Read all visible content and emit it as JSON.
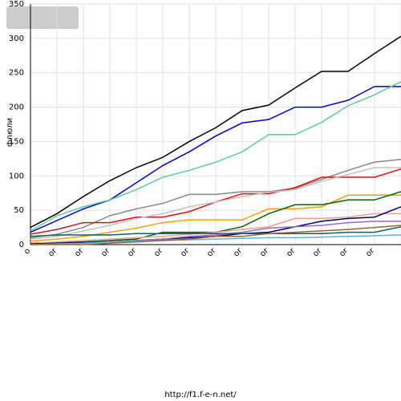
{
  "chart_data": {
    "type": "line",
    "y_label": "флюли",
    "footer": "http://f1.f-e-n.net/",
    "categories": [
      "o",
      "or",
      "or",
      "or",
      "or",
      "or",
      "or",
      "or",
      "or",
      "or",
      "or",
      "or",
      "or",
      "or",
      null
    ],
    "ylim": [
      0,
      350
    ],
    "yticks": [
      0,
      50,
      100,
      150,
      200,
      250,
      300,
      350
    ],
    "grid": true,
    "series": [
      {
        "color": "#000000",
        "values": [
          25,
          45,
          70,
          93,
          112,
          127,
          150,
          170,
          195,
          203,
          228,
          252,
          252,
          278,
          303
        ]
      },
      {
        "color": "#0000cc",
        "values": [
          18,
          35,
          52,
          65,
          90,
          115,
          135,
          158,
          177,
          182,
          200,
          200,
          210,
          230,
          230
        ]
      },
      {
        "color": "#5fc8a8",
        "values": [
          20,
          42,
          55,
          65,
          80,
          98,
          108,
          120,
          135,
          160,
          160,
          178,
          202,
          218,
          237
        ]
      },
      {
        "color": "#888888",
        "values": [
          10,
          15,
          25,
          42,
          52,
          60,
          73,
          73,
          77,
          77,
          82,
          95,
          108,
          120,
          124
        ]
      },
      {
        "color": "#dd1111",
        "values": [
          15,
          22,
          32,
          32,
          40,
          40,
          48,
          62,
          74,
          74,
          83,
          98,
          98,
          98,
          110
        ]
      },
      {
        "color": "#c0c0c0",
        "values": [
          8,
          12,
          20,
          28,
          38,
          45,
          55,
          62,
          70,
          76,
          80,
          92,
          102,
          112,
          112
        ]
      },
      {
        "color": "#f0a000",
        "values": [
          5,
          8,
          12,
          18,
          24,
          32,
          36,
          36,
          36,
          52,
          52,
          55,
          72,
          72,
          72
        ]
      },
      {
        "color": "#006600",
        "values": [
          2,
          3,
          4,
          6,
          8,
          18,
          18,
          18,
          26,
          45,
          58,
          58,
          65,
          65,
          77
        ]
      },
      {
        "color": "#e8a090",
        "values": [
          2,
          4,
          6,
          8,
          10,
          12,
          15,
          18,
          22,
          26,
          38,
          38,
          40,
          45,
          45
        ]
      },
      {
        "color": "#000066",
        "values": [
          1,
          2,
          3,
          4,
          6,
          8,
          10,
          12,
          16,
          18,
          26,
          34,
          38,
          40,
          55
        ]
      },
      {
        "color": "#9966cc",
        "values": [
          0,
          1,
          2,
          4,
          6,
          8,
          12,
          14,
          18,
          24,
          26,
          28,
          32,
          34,
          34
        ]
      },
      {
        "color": "#006666",
        "values": [
          12,
          14,
          14,
          14,
          16,
          16,
          16,
          16,
          16,
          16,
          16,
          16,
          18,
          18,
          26
        ]
      },
      {
        "color": "#66aaee",
        "values": [
          0,
          1,
          2,
          4,
          5,
          6,
          7,
          8,
          9,
          10,
          10,
          11,
          12,
          13,
          14
        ]
      },
      {
        "color": "#996633",
        "values": [
          0,
          0,
          0,
          2,
          4,
          6,
          8,
          12,
          12,
          16,
          18,
          20,
          22,
          25,
          28
        ]
      }
    ]
  }
}
